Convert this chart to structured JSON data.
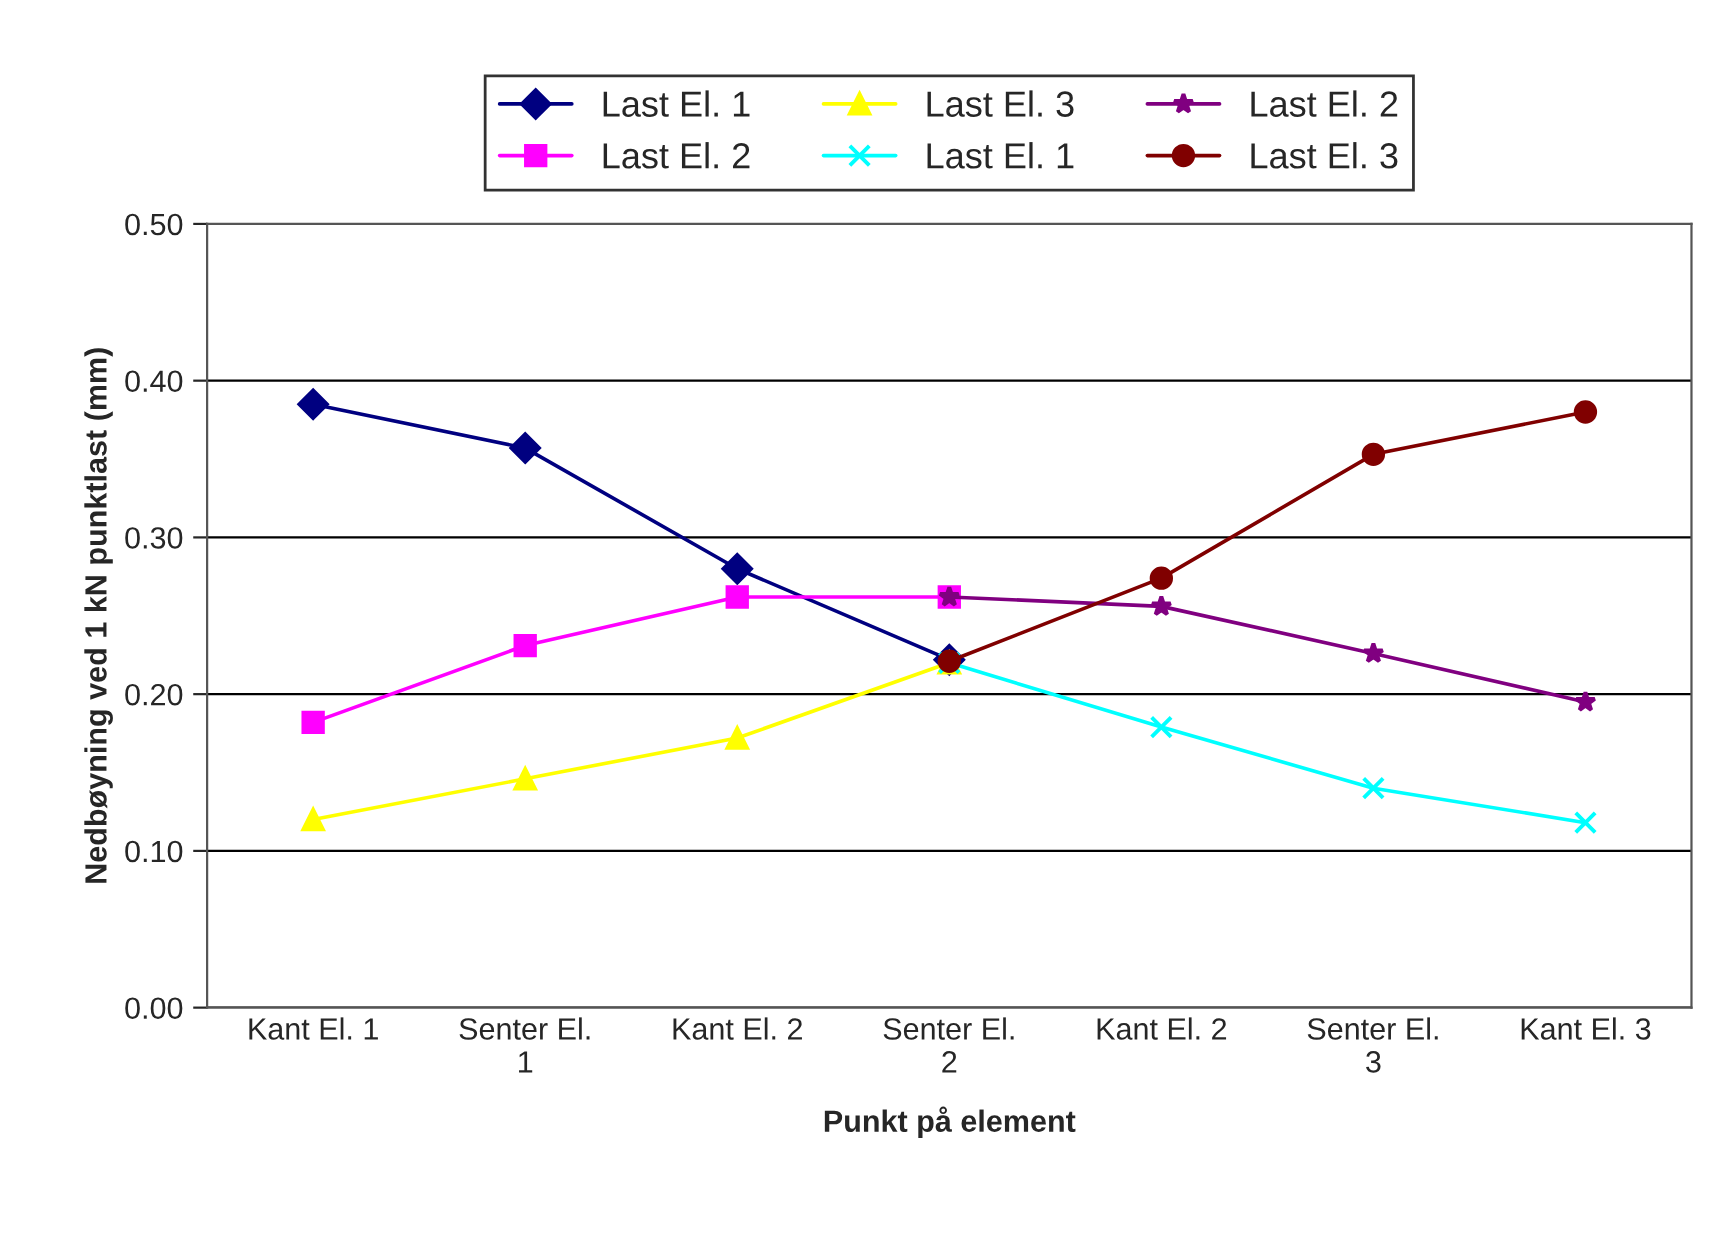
{
  "chart_data": {
    "type": "line",
    "xlabel": "Punkt på element",
    "ylabel": "Nedbøyning ved 1 kN punktlast (mm)",
    "categories": [
      "Kant El. 1",
      "Senter El.\n1",
      "Kant El. 2",
      "Senter El.\n2",
      "Kant El. 2",
      "Senter El.\n3",
      "Kant El. 3"
    ],
    "series": [
      {
        "name": "Last El. 1",
        "color": "#000080",
        "marker": "diamond",
        "values": [
          0.385,
          0.357,
          0.28,
          0.222,
          null,
          null,
          null
        ]
      },
      {
        "name": "Last El. 2",
        "color": "#ff00ff",
        "marker": "square",
        "values": [
          0.182,
          0.231,
          0.262,
          0.262,
          null,
          null,
          null
        ]
      },
      {
        "name": "Last El. 3",
        "color": "#ffff00",
        "marker": "triangle",
        "values": [
          0.12,
          0.146,
          0.172,
          0.22,
          null,
          null,
          null
        ]
      },
      {
        "name": "Last El. 1",
        "color": "#00ffff",
        "marker": "cross",
        "values": [
          null,
          null,
          null,
          0.22,
          0.179,
          0.14,
          0.118
        ]
      },
      {
        "name": "Last El. 2",
        "color": "#800080",
        "marker": "star",
        "values": [
          null,
          null,
          null,
          0.262,
          0.256,
          0.226,
          0.195
        ]
      },
      {
        "name": "Last El. 3",
        "color": "#800000",
        "marker": "circle",
        "values": [
          null,
          null,
          null,
          0.221,
          0.274,
          0.353,
          0.38
        ]
      }
    ],
    "ylim": [
      0,
      0.5
    ],
    "yticks": [
      {
        "value": 0,
        "label": "0.00"
      },
      {
        "value": 0.1,
        "label": "0.10"
      },
      {
        "value": 0.2,
        "label": "0.20"
      },
      {
        "value": 0.3,
        "label": "0.30"
      },
      {
        "value": 0.4,
        "label": "0.40"
      },
      {
        "value": 0.5,
        "label": "0.50"
      }
    ],
    "grid": "y",
    "legend": "top"
  }
}
